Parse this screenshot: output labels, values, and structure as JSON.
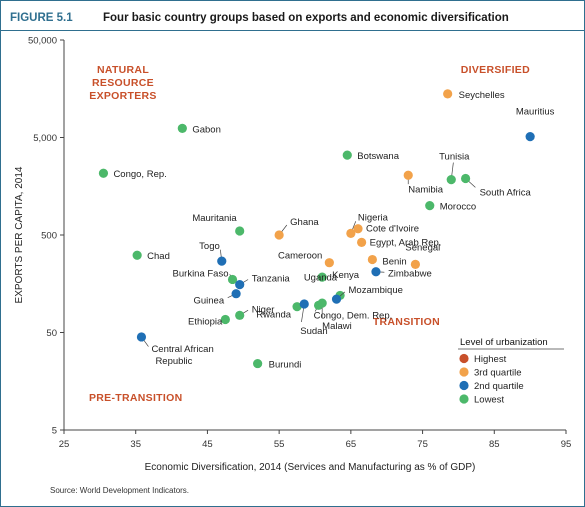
{
  "figure": {
    "label": "FIGURE 5.1",
    "title": "Four basic country groups based on exports and economic diversification",
    "source": "Source: World Development Indicators."
  },
  "colors": {
    "Highest": "#c8502a",
    "3rd quartile": "#f2a24a",
    "2nd quartile": "#1f6fb5",
    "Lowest": "#4cb86a",
    "border": "#2f6f8f",
    "region": "#c8502a"
  },
  "regions": {
    "natural_resource": [
      "NATURAL",
      "RESOURCE",
      "EXPORTERS"
    ],
    "diversified": "DIVERSIFIED",
    "pre_transition": "PRE-TRANSITION",
    "transition": "TRANSITION"
  },
  "chart_data": {
    "type": "scatter",
    "xlabel": "Economic Diversification, 2014 (Services and Manufacturing as % of GDP)",
    "ylabel": "EXPORTS PER CAPITA, 2014",
    "xlim": [
      25,
      95
    ],
    "ylim": [
      5,
      50000
    ],
    "yscale": "log",
    "xticks": [
      "25",
      "35",
      "45",
      "55",
      "65",
      "75",
      "85",
      "95"
    ],
    "yticks": [
      "50,000",
      "5,000",
      "500",
      "50",
      "5"
    ],
    "legend": {
      "title": "Level of urbanization",
      "entries": [
        "Highest",
        "3rd quartile",
        "2nd quartile",
        "Lowest"
      ],
      "position": "bottom-right"
    },
    "grid": false,
    "points": [
      {
        "name": "Gabon",
        "x": 41.5,
        "y": 6200,
        "group": "Lowest"
      },
      {
        "name": "Congo, Rep.",
        "x": 30.5,
        "y": 2150,
        "group": "Lowest"
      },
      {
        "name": "Botswana",
        "x": 64.5,
        "y": 3300,
        "group": "Lowest"
      },
      {
        "name": "Seychelles",
        "x": 78.5,
        "y": 14000,
        "group": "3rd quartile"
      },
      {
        "name": "Mauritius",
        "x": 90,
        "y": 5100,
        "group": "2nd quartile"
      },
      {
        "name": "Tunisia",
        "x": 79,
        "y": 1850,
        "group": "Lowest"
      },
      {
        "name": "Namibia",
        "x": 73,
        "y": 2050,
        "group": "3rd quartile"
      },
      {
        "name": "South Africa",
        "x": 81,
        "y": 1900,
        "group": "Lowest"
      },
      {
        "name": "Morocco",
        "x": 76,
        "y": 1000,
        "group": "Lowest"
      },
      {
        "name": "Mauritania",
        "x": 49.5,
        "y": 550,
        "group": "Lowest"
      },
      {
        "name": "Ghana",
        "x": 55,
        "y": 500,
        "group": "3rd quartile"
      },
      {
        "name": "Nigeria",
        "x": 65,
        "y": 520,
        "group": "3rd quartile"
      },
      {
        "name": "Cote d'Ivoire",
        "x": 66,
        "y": 580,
        "group": "3rd quartile"
      },
      {
        "name": "Egypt, Arab Rep.",
        "x": 66.5,
        "y": 420,
        "group": "3rd quartile"
      },
      {
        "name": "Chad",
        "x": 35.2,
        "y": 310,
        "group": "Lowest"
      },
      {
        "name": "Togo",
        "x": 47,
        "y": 270,
        "group": "2nd quartile"
      },
      {
        "name": "Cameroon",
        "x": 62,
        "y": 260,
        "group": "3rd quartile"
      },
      {
        "name": "Senegal",
        "x": 74,
        "y": 250,
        "group": "3rd quartile"
      },
      {
        "name": "Benin",
        "x": 68,
        "y": 280,
        "group": "3rd quartile"
      },
      {
        "name": "Zimbabwe",
        "x": 68.5,
        "y": 210,
        "group": "2nd quartile"
      },
      {
        "name": "Kenya",
        "x": 61,
        "y": 185,
        "group": "Lowest"
      },
      {
        "name": "Burkina Faso",
        "x": 48.5,
        "y": 175,
        "group": "Lowest"
      },
      {
        "name": "Tanzania",
        "x": 49.5,
        "y": 155,
        "group": "2nd quartile"
      },
      {
        "name": "Uganda",
        "x": 63.5,
        "y": 120,
        "group": "Lowest"
      },
      {
        "name": "Mozambique",
        "x": 63,
        "y": 110,
        "group": "2nd quartile"
      },
      {
        "name": "Guinea",
        "x": 49,
        "y": 125,
        "group": "2nd quartile"
      },
      {
        "name": "Niger",
        "x": 49.5,
        "y": 75,
        "group": "Lowest"
      },
      {
        "name": "Rwanda",
        "x": 57.5,
        "y": 92,
        "group": "Lowest"
      },
      {
        "name": "Congo, Dem. Rep.",
        "x": 60.5,
        "y": 95,
        "group": "Lowest"
      },
      {
        "name": "Sudan",
        "x": 58.5,
        "y": 98,
        "group": "2nd quartile"
      },
      {
        "name": "Malawi",
        "x": 61,
        "y": 100,
        "group": "Lowest"
      },
      {
        "name": "Ethiopia",
        "x": 47.5,
        "y": 68,
        "group": "Lowest"
      },
      {
        "name": "Central African Republic",
        "x": 35.8,
        "y": 45,
        "group": "2nd quartile"
      },
      {
        "name": "Burundi",
        "x": 52,
        "y": 24,
        "group": "Lowest"
      }
    ]
  }
}
